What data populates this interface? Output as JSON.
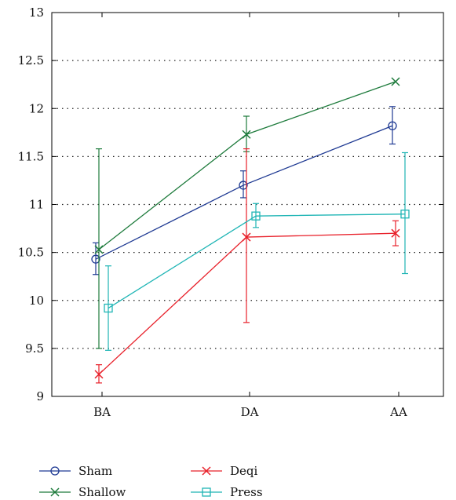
{
  "chart_data": {
    "type": "line",
    "categories": [
      "BA",
      "DA",
      "AA"
    ],
    "ylim": [
      9,
      13
    ],
    "yticks": [
      "9",
      "9.5",
      "10",
      "10.5",
      "11",
      "11.5",
      "12",
      "12.5",
      "13"
    ],
    "grid": "horizontal dotted",
    "legend_position": "bottom",
    "series": [
      {
        "name": "Sham",
        "color": "#1f3a93",
        "marker": "circle",
        "values": [
          10.43,
          11.2,
          11.82
        ],
        "err_low": [
          10.27,
          11.07,
          11.63
        ],
        "err_high": [
          10.6,
          11.35,
          12.02
        ]
      },
      {
        "name": "Shallow",
        "color": "#1e7b3c",
        "marker": "x",
        "values": [
          10.53,
          11.73,
          12.28
        ],
        "err_low": [
          9.5,
          11.55,
          12.28
        ],
        "err_high": [
          11.58,
          11.92,
          12.28
        ]
      },
      {
        "name": "Deqi",
        "color": "#e8202a",
        "marker": "x",
        "values": [
          9.23,
          10.66,
          10.7
        ],
        "err_low": [
          9.14,
          9.77,
          10.57
        ],
        "err_high": [
          9.33,
          11.58,
          10.83
        ]
      },
      {
        "name": "Press",
        "color": "#1fb5b5",
        "marker": "square",
        "values": [
          9.92,
          10.88,
          10.9
        ],
        "err_low": [
          9.48,
          10.76,
          10.28
        ],
        "err_high": [
          10.36,
          11.01,
          11.54
        ]
      }
    ]
  }
}
